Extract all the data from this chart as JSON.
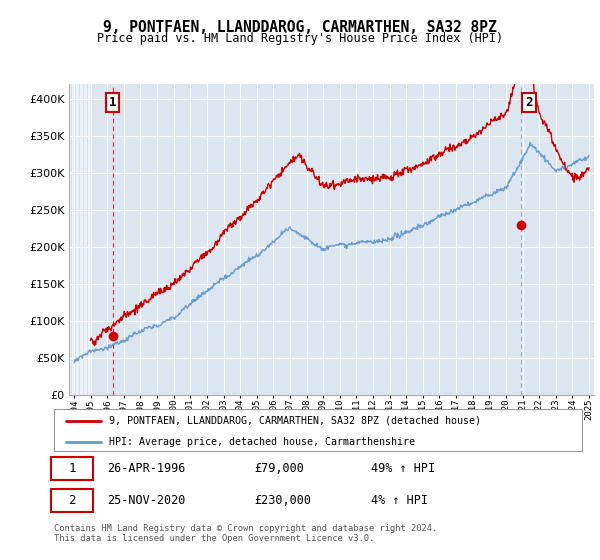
{
  "title": "9, PONTFAEN, LLANDDAROG, CARMARTHEN, SA32 8PZ",
  "subtitle": "Price paid vs. HM Land Registry's House Price Index (HPI)",
  "legend_line1": "9, PONTFAEN, LLANDDAROG, CARMARTHEN, SA32 8PZ (detached house)",
  "legend_line2": "HPI: Average price, detached house, Carmarthenshire",
  "annotation1_date": "26-APR-1996",
  "annotation1_price": "£79,000",
  "annotation1_hpi": "49% ↑ HPI",
  "annotation2_date": "25-NOV-2020",
  "annotation2_price": "£230,000",
  "annotation2_hpi": "4% ↑ HPI",
  "footer": "Contains HM Land Registry data © Crown copyright and database right 2024.\nThis data is licensed under the Open Government Licence v3.0.",
  "red_color": "#cc0000",
  "blue_color": "#6699cc",
  "plot_bg": "#dce6f0",
  "ylim": [
    0,
    420000
  ],
  "xlim_start": 1993.7,
  "xlim_end": 2025.3,
  "sale1_year": 1996.32,
  "sale1_price": 79000,
  "sale2_year": 2020.9,
  "sale2_price": 230000,
  "yticks": [
    0,
    50000,
    100000,
    150000,
    200000,
    250000,
    300000,
    350000,
    400000
  ]
}
